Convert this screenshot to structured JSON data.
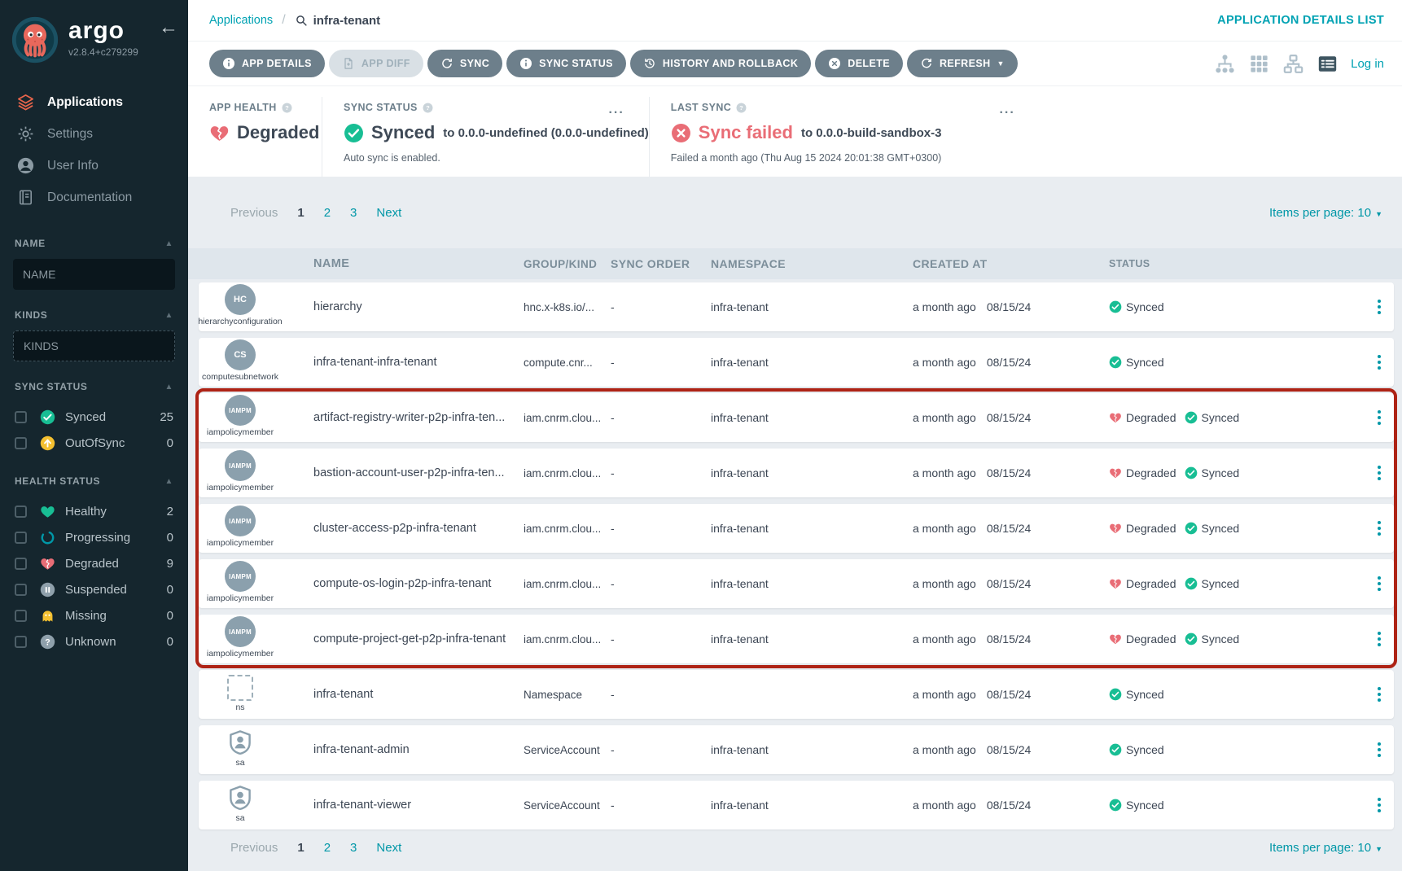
{
  "colors": {
    "accent_teal": "#00a2b3",
    "green": "#18be94",
    "red": "#e96d76",
    "yellow": "#f4c030",
    "annotation_red": "#ae2315",
    "button_gray": "#6d7f8b",
    "sidebar_bg": "#15262e"
  },
  "sidebar": {
    "brand": "argo",
    "version": "v2.8.4+c279299",
    "nav": [
      {
        "label": "Applications",
        "icon": "layers-icon",
        "active": true
      },
      {
        "label": "Settings",
        "icon": "gear-icon",
        "active": false
      },
      {
        "label": "User Info",
        "icon": "user-icon",
        "active": false
      },
      {
        "label": "Documentation",
        "icon": "book-icon",
        "active": false
      }
    ],
    "filters": {
      "name": {
        "label": "NAME",
        "placeholder": "NAME"
      },
      "kinds": {
        "label": "KINDS",
        "placeholder": "KINDS"
      },
      "sync": {
        "label": "SYNC STATUS",
        "items": [
          {
            "label": "Synced",
            "count": "25",
            "icon": "check-circle-icon"
          },
          {
            "label": "OutOfSync",
            "count": "0",
            "icon": "arrow-up-circle-icon"
          }
        ]
      },
      "health": {
        "label": "HEALTH STATUS",
        "items": [
          {
            "label": "Healthy",
            "count": "2",
            "icon": "heart-icon"
          },
          {
            "label": "Progressing",
            "count": "0",
            "icon": "progressing-icon"
          },
          {
            "label": "Degraded",
            "count": "9",
            "icon": "broken-heart-icon"
          },
          {
            "label": "Suspended",
            "count": "0",
            "icon": "pause-circle-icon"
          },
          {
            "label": "Missing",
            "count": "0",
            "icon": "ghost-icon"
          },
          {
            "label": "Unknown",
            "count": "0",
            "icon": "question-circle-icon"
          }
        ]
      }
    }
  },
  "header": {
    "breadcrumb_root": "Applications",
    "search_value": "infra-tenant",
    "page_link": "APPLICATION DETAILS LIST"
  },
  "toolbar": {
    "buttons": [
      {
        "label": "APP DETAILS",
        "icon": "info-circle-icon",
        "disabled": false,
        "caret": false
      },
      {
        "label": "APP DIFF",
        "icon": "file-icon",
        "disabled": true,
        "caret": false
      },
      {
        "label": "SYNC",
        "icon": "sync-icon",
        "disabled": false,
        "caret": false
      },
      {
        "label": "SYNC STATUS",
        "icon": "info-circle-icon",
        "disabled": false,
        "caret": false
      },
      {
        "label": "HISTORY AND ROLLBACK",
        "icon": "history-icon",
        "disabled": false,
        "caret": false
      },
      {
        "label": "DELETE",
        "icon": "x-circle-icon",
        "disabled": false,
        "caret": false
      },
      {
        "label": "REFRESH",
        "icon": "refresh-icon",
        "disabled": false,
        "caret": true
      }
    ],
    "view_modes": [
      {
        "icon": "tree-icon",
        "active": false
      },
      {
        "icon": "grid-icon",
        "active": false
      },
      {
        "icon": "network-icon",
        "active": false
      },
      {
        "icon": "list-icon",
        "active": true
      }
    ],
    "login_label": "Log in"
  },
  "status_panels": {
    "app_health": {
      "label": "APP HEALTH",
      "value": "Degraded"
    },
    "sync_status": {
      "label": "SYNC STATUS",
      "value": "Synced",
      "target": "to 0.0.0-undefined (0.0.0-undefined)",
      "note": "Auto sync is enabled.",
      "menu": "..."
    },
    "last_sync": {
      "label": "LAST SYNC",
      "value": "Sync failed",
      "target": "to 0.0.0-build-sandbox-3",
      "note": "Failed a month ago (Thu Aug 15 2024 20:01:38 GMT+0300)",
      "menu": "..."
    }
  },
  "pagination": {
    "previous": "Previous",
    "pages": [
      "1",
      "2",
      "3"
    ],
    "active_page": "1",
    "next": "Next",
    "items_per_page": "Items per page: 10"
  },
  "table": {
    "headers": [
      "NAME",
      "GROUP/KIND",
      "SYNC ORDER",
      "NAMESPACE",
      "CREATED AT",
      "STATUS"
    ],
    "rows": [
      {
        "badge": "HC",
        "badge_type": "circle",
        "kind": "hierarchyconfiguration",
        "name": "hierarchy",
        "group": "hnc.x-k8s.io/...",
        "sync_order": "-",
        "namespace": "infra-tenant",
        "created_rel": "a month ago",
        "created_date": "08/15/24",
        "statuses": [
          {
            "label": "Synced",
            "icon": "check-circle-icon"
          }
        ]
      },
      {
        "badge": "CS",
        "badge_type": "circle",
        "kind": "computesubnetwork",
        "name": "infra-tenant-infra-tenant",
        "group": "compute.cnr...",
        "sync_order": "-",
        "namespace": "infra-tenant",
        "created_rel": "a month ago",
        "created_date": "08/15/24",
        "statuses": [
          {
            "label": "Synced",
            "icon": "check-circle-icon"
          }
        ]
      },
      {
        "badge": "IAMPM",
        "badge_type": "circle",
        "kind": "iampolicymember",
        "name": "artifact-registry-writer-p2p-infra-ten...",
        "group": "iam.cnrm.clou...",
        "sync_order": "-",
        "namespace": "infra-tenant",
        "created_rel": "a month ago",
        "created_date": "08/15/24",
        "statuses": [
          {
            "label": "Degraded",
            "icon": "broken-heart-icon"
          },
          {
            "label": "Synced",
            "icon": "check-circle-icon"
          }
        ]
      },
      {
        "badge": "IAMPM",
        "badge_type": "circle",
        "kind": "iampolicymember",
        "name": "bastion-account-user-p2p-infra-ten...",
        "group": "iam.cnrm.clou...",
        "sync_order": "-",
        "namespace": "infra-tenant",
        "created_rel": "a month ago",
        "created_date": "08/15/24",
        "statuses": [
          {
            "label": "Degraded",
            "icon": "broken-heart-icon"
          },
          {
            "label": "Synced",
            "icon": "check-circle-icon"
          }
        ]
      },
      {
        "badge": "IAMPM",
        "badge_type": "circle",
        "kind": "iampolicymember",
        "name": "cluster-access-p2p-infra-tenant",
        "group": "iam.cnrm.clou...",
        "sync_order": "-",
        "namespace": "infra-tenant",
        "created_rel": "a month ago",
        "created_date": "08/15/24",
        "statuses": [
          {
            "label": "Degraded",
            "icon": "broken-heart-icon"
          },
          {
            "label": "Synced",
            "icon": "check-circle-icon"
          }
        ]
      },
      {
        "badge": "IAMPM",
        "badge_type": "circle",
        "kind": "iampolicymember",
        "name": "compute-os-login-p2p-infra-tenant",
        "group": "iam.cnrm.clou...",
        "sync_order": "-",
        "namespace": "infra-tenant",
        "created_rel": "a month ago",
        "created_date": "08/15/24",
        "statuses": [
          {
            "label": "Degraded",
            "icon": "broken-heart-icon"
          },
          {
            "label": "Synced",
            "icon": "check-circle-icon"
          }
        ]
      },
      {
        "badge": "IAMPM",
        "badge_type": "circle",
        "kind": "iampolicymember",
        "name": "compute-project-get-p2p-infra-tenant",
        "group": "iam.cnrm.clou...",
        "sync_order": "-",
        "namespace": "infra-tenant",
        "created_rel": "a month ago",
        "created_date": "08/15/24",
        "statuses": [
          {
            "label": "Degraded",
            "icon": "broken-heart-icon"
          },
          {
            "label": "Synced",
            "icon": "check-circle-icon"
          }
        ]
      },
      {
        "badge": "",
        "badge_type": "ns",
        "kind": "ns",
        "name": "infra-tenant",
        "group": "Namespace",
        "sync_order": "-",
        "namespace": "",
        "created_rel": "a month ago",
        "created_date": "08/15/24",
        "statuses": [
          {
            "label": "Synced",
            "icon": "check-circle-icon"
          }
        ]
      },
      {
        "badge": "",
        "badge_type": "sa",
        "kind": "sa",
        "name": "infra-tenant-admin",
        "group": "ServiceAccount",
        "sync_order": "-",
        "namespace": "infra-tenant",
        "created_rel": "a month ago",
        "created_date": "08/15/24",
        "statuses": [
          {
            "label": "Synced",
            "icon": "check-circle-icon"
          }
        ]
      },
      {
        "badge": "",
        "badge_type": "sa",
        "kind": "sa",
        "name": "infra-tenant-viewer",
        "group": "ServiceAccount",
        "sync_order": "-",
        "namespace": "infra-tenant",
        "created_rel": "a month ago",
        "created_date": "08/15/24",
        "statuses": [
          {
            "label": "Synced",
            "icon": "check-circle-icon"
          }
        ]
      }
    ]
  }
}
